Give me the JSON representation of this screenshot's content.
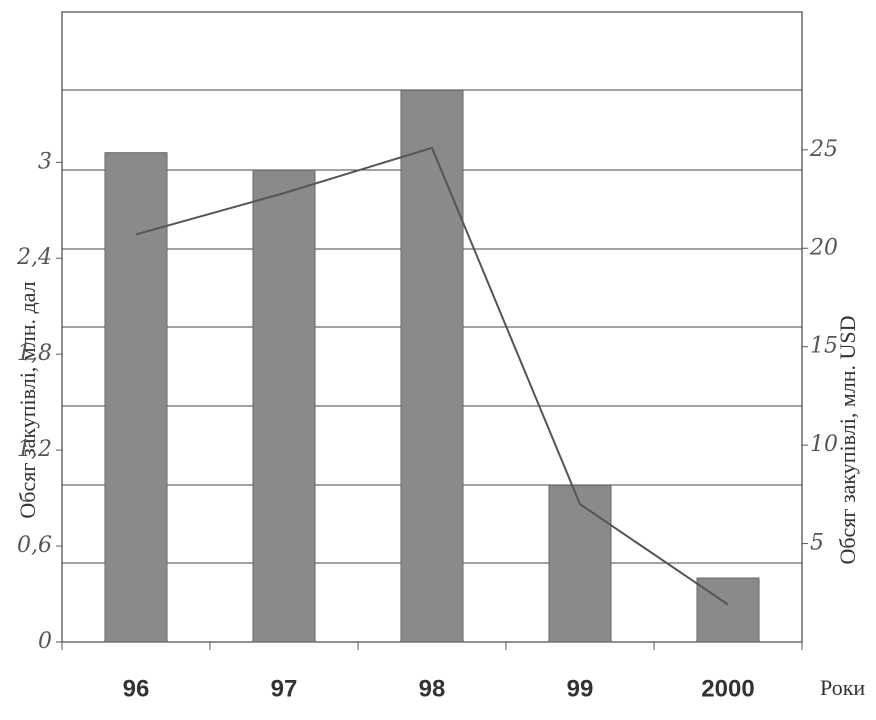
{
  "chart_data": {
    "type": "bar",
    "categories": [
      "96",
      "97",
      "98",
      "99",
      "2000"
    ],
    "x_label": "Роки",
    "y_label": "Обсяг закупівлі, млн. дал",
    "y2_label": "Обсяг закупівлі, млн. USD",
    "series": [
      {
        "type": "bar",
        "color": "#8a8a8a",
        "values": [
          3.06,
          2.95,
          3.45,
          0.98,
          0.4
        ]
      },
      {
        "type": "line",
        "axis": "y2",
        "color": "#555555",
        "values": [
          20.7,
          22.8,
          25.1,
          7.0,
          1.9
        ]
      }
    ],
    "ylim": [
      0,
      3.94
    ],
    "yticks": [
      0,
      {
        "value": 0.6,
        "label": "0,6"
      },
      {
        "value": 1.2,
        "label": "1,2"
      },
      {
        "value": 1.8,
        "label": "1,8"
      },
      {
        "value": 2.4,
        "label": "2,4"
      },
      3
    ],
    "y2lim": [
      0,
      32
    ],
    "y2ticks": [
      5,
      10,
      15,
      20,
      25
    ]
  }
}
